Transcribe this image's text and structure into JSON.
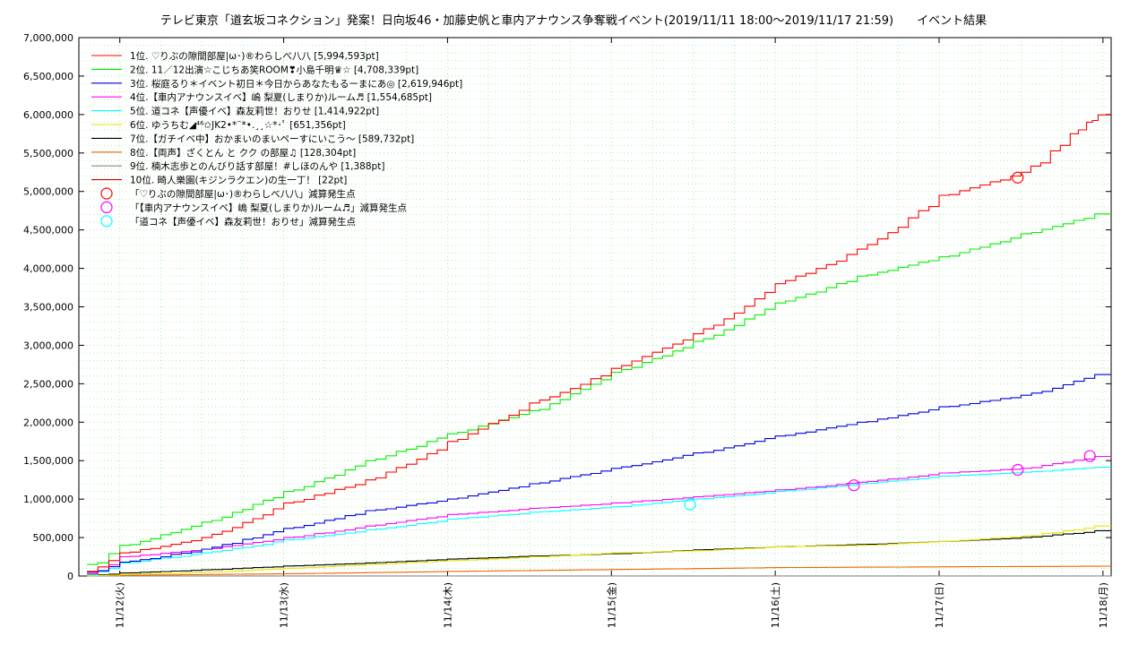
{
  "chart_data": {
    "type": "line",
    "title": "テレビ東京「道玄坂コネクション」発案！日向坂46・加藤史帆と車内アナウンス争奪戦イベント(2019/11/11 18:00～2019/11/17 21:59)　　イベント結果",
    "xlabel": "",
    "ylabel": "",
    "xlim": [
      -0.25,
      6.05
    ],
    "ylim": [
      0,
      7000000
    ],
    "y_ticks": [
      0,
      500000,
      1000000,
      1500000,
      2000000,
      2500000,
      3000000,
      3500000,
      4000000,
      4500000,
      5000000,
      5500000,
      6000000,
      6500000,
      7000000
    ],
    "y_tick_labels": [
      "0",
      "500,000",
      "1,000,000",
      "1,500,000",
      "2,000,000",
      "2,500,000",
      "3,000,000",
      "3,500,000",
      "4,000,000",
      "4,500,000",
      "5,000,000",
      "5,500,000",
      "6,000,000",
      "6,500,000",
      "7,000,000"
    ],
    "x_tick_labels": [
      "11/12(火)",
      "11/13(水)",
      "11/14(木)",
      "11/15(金)",
      "11/16(土)",
      "11/17(日)",
      "11/18(月)"
    ],
    "grid": true,
    "legend_position": "top-left",
    "series": [
      {
        "name": "1位. ♡りぶの隙間部屋|ω･)®わらしべ八八 [5,994,593pt]",
        "color": "#ff0000",
        "x": [
          -0.2,
          0,
          0.5,
          1,
          1.5,
          2,
          2.5,
          3,
          3.5,
          4,
          4.5,
          5,
          5.5,
          5.8,
          5.9,
          5.97,
          6.05
        ],
        "y": [
          60000,
          300000,
          500000,
          950000,
          1250000,
          1750000,
          2250000,
          2700000,
          3150000,
          3800000,
          4250000,
          4950000,
          5250000,
          5750000,
          5900000,
          5994593,
          5994593
        ]
      },
      {
        "name": "2位. 11／12出演☆こじちあ笑ROOM❣小島千明♛☆ [4,708,339pt]",
        "color": "#00ee00",
        "x": [
          -0.2,
          0,
          0.5,
          1,
          1.5,
          2,
          2.5,
          3,
          3.5,
          4,
          4.5,
          5,
          5.5,
          5.95,
          6.05
        ],
        "y": [
          150000,
          400000,
          700000,
          1100000,
          1500000,
          1850000,
          2150000,
          2650000,
          3050000,
          3550000,
          3900000,
          4150000,
          4450000,
          4708339,
          4708339
        ]
      },
      {
        "name": "3位. 桜庭るり＊イベント初日＊今日からあなたもるーまにあ◎ [2,619,946pt]",
        "color": "#0000dd",
        "x": [
          -0.2,
          0,
          0.5,
          1,
          1.5,
          2,
          2.5,
          3,
          3.5,
          4,
          4.5,
          5,
          5.5,
          5.95,
          6.05
        ],
        "y": [
          50000,
          180000,
          350000,
          620000,
          850000,
          1000000,
          1200000,
          1400000,
          1600000,
          1820000,
          2000000,
          2200000,
          2350000,
          2619946,
          2619946
        ]
      },
      {
        "name": "4位.【車内アナウンスイベ】嶋 梨夏(しまりか)ルーム♬ [1,554,685pt]",
        "color": "#ff00ff",
        "x": [
          -0.2,
          0,
          0.5,
          1,
          1.5,
          2,
          2.5,
          3,
          3.5,
          4,
          4.5,
          5,
          5.5,
          5.95,
          6.05
        ],
        "y": [
          30000,
          250000,
          350000,
          500000,
          650000,
          800000,
          880000,
          950000,
          1030000,
          1120000,
          1220000,
          1340000,
          1400000,
          1554685,
          1554685
        ]
      },
      {
        "name": "5位. 道コネ【声優イベ】森友莉世！おりせ [1,414,922pt]",
        "color": "#00ffff",
        "x": [
          -0.2,
          0,
          0.5,
          1,
          1.5,
          2,
          2.5,
          3,
          3.5,
          4,
          4.5,
          5,
          5.5,
          5.95,
          6.05
        ],
        "y": [
          20000,
          170000,
          300000,
          470000,
          600000,
          740000,
          830000,
          900000,
          1000000,
          1100000,
          1200000,
          1300000,
          1350000,
          1414922,
          1414922
        ]
      },
      {
        "name": "6位. ゆうちむ◢⁴⁶✩JK2•*¨*•.¸¸☆*･ﾟ [651,356pt]",
        "color": "#e6e600",
        "x": [
          -0.2,
          0,
          0.5,
          1,
          1.5,
          2,
          2.5,
          3,
          3.5,
          4,
          4.5,
          5,
          5.5,
          5.95,
          6.05
        ],
        "y": [
          5000,
          20000,
          50000,
          100000,
          150000,
          200000,
          250000,
          300000,
          330000,
          380000,
          400000,
          450000,
          520000,
          651356,
          651356
        ]
      },
      {
        "name": "7位.【ガチイベ中】おかまいのまいペーすにいこう～ [589,732pt]",
        "color": "#000000",
        "x": [
          -0.2,
          0,
          0.5,
          1,
          1.5,
          2,
          2.5,
          3,
          3.5,
          4,
          4.5,
          5,
          5.5,
          5.95,
          6.05
        ],
        "y": [
          10000,
          40000,
          80000,
          130000,
          170000,
          220000,
          260000,
          290000,
          340000,
          380000,
          410000,
          450000,
          500000,
          589732,
          589732
        ]
      },
      {
        "name": "8位.【両声】ざくとん と クク の部屋♫ [128,304pt]",
        "color": "#ee6600",
        "x": [
          -0.2,
          0,
          1,
          2,
          3,
          4,
          5,
          6.05
        ],
        "y": [
          5000,
          10000,
          30000,
          60000,
          85000,
          110000,
          120000,
          128304
        ]
      },
      {
        "name": "9位. 楠木志歩とのんびり話す部屋！#しほのんや [1,388pt]",
        "color": "#888888",
        "x": [
          -0.2,
          6.05
        ],
        "y": [
          1388,
          1388
        ]
      },
      {
        "name": "10位. 畸人樂園(キジンラクエン)の生一丁！ [22pt]",
        "color": "#cc0000",
        "x": [
          -0.2,
          6.05
        ],
        "y": [
          22,
          22
        ]
      }
    ],
    "markers": [
      {
        "name": "「♡りぶの隙間部屋|ω･)®わらしべ八八」減算発生点",
        "color": "#ff0000",
        "points": [
          {
            "x": 5.48,
            "y": 5180000
          }
        ]
      },
      {
        "name": "「【車内アナウンスイベ】嶋 梨夏(しまりか)ルーム♬」減算発生点",
        "color": "#ff00ff",
        "points": [
          {
            "x": 4.48,
            "y": 1180000
          },
          {
            "x": 5.48,
            "y": 1380000
          },
          {
            "x": 5.92,
            "y": 1560000
          }
        ]
      },
      {
        "name": "「道コネ【声優イベ】森友莉世！おりせ」減算発生点",
        "color": "#00ffff",
        "points": [
          {
            "x": 3.48,
            "y": 930000
          }
        ]
      }
    ]
  }
}
